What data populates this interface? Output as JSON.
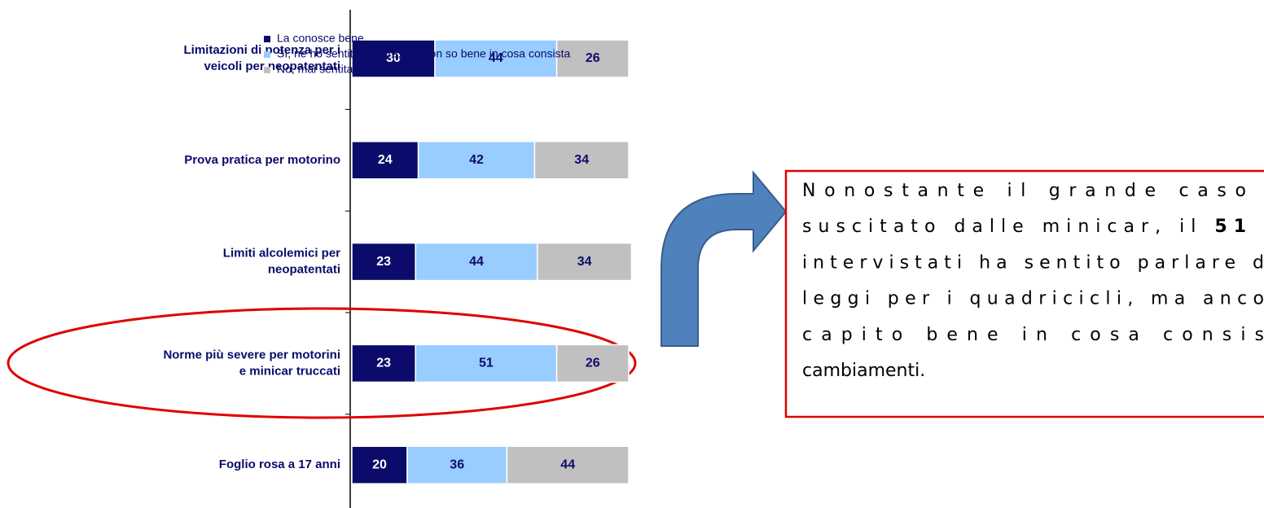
{
  "chart_data": {
    "type": "stacked-barh",
    "categories": [
      [
        "Limitazioni di potenza per i",
        "veicoli per neopatentati"
      ],
      [
        "Prova pratica per motorino"
      ],
      [
        "Limiti alcolemici per",
        "neopatentati"
      ],
      [
        "Norme più severe per motorini",
        "e minicar truccati"
      ],
      [
        "Foglio rosa a 17 anni"
      ]
    ],
    "series": [
      {
        "name": "La conosce bene",
        "color": "#0b0b6b",
        "label_color": "#ffffff",
        "values": [
          30,
          24,
          23,
          23,
          20
        ]
      },
      {
        "name": "Sì, ne ho sentito parlare, ma non so bene in cosa consista",
        "color": "#99ccff",
        "label_color": "#0b0b6b",
        "values": [
          44,
          42,
          44,
          51,
          36
        ]
      },
      {
        "name": "No, mai sentita prima d'ora",
        "color": "#c0c0c0",
        "label_color": "#0b0b6b",
        "values": [
          26,
          34,
          34,
          26,
          44
        ]
      }
    ],
    "xlim": [
      0,
      100
    ],
    "legend": "top-right",
    "annotation": {
      "lines": [
        "Nonostante il grande caso",
        "suscitato dalle minicar, il ",
        "intervistati ha sentito parlare d",
        "leggi per i quadricicli, ma anco",
        "capito bene in cosa consis",
        "cambiamenti."
      ],
      "highlight": "51"
    }
  }
}
